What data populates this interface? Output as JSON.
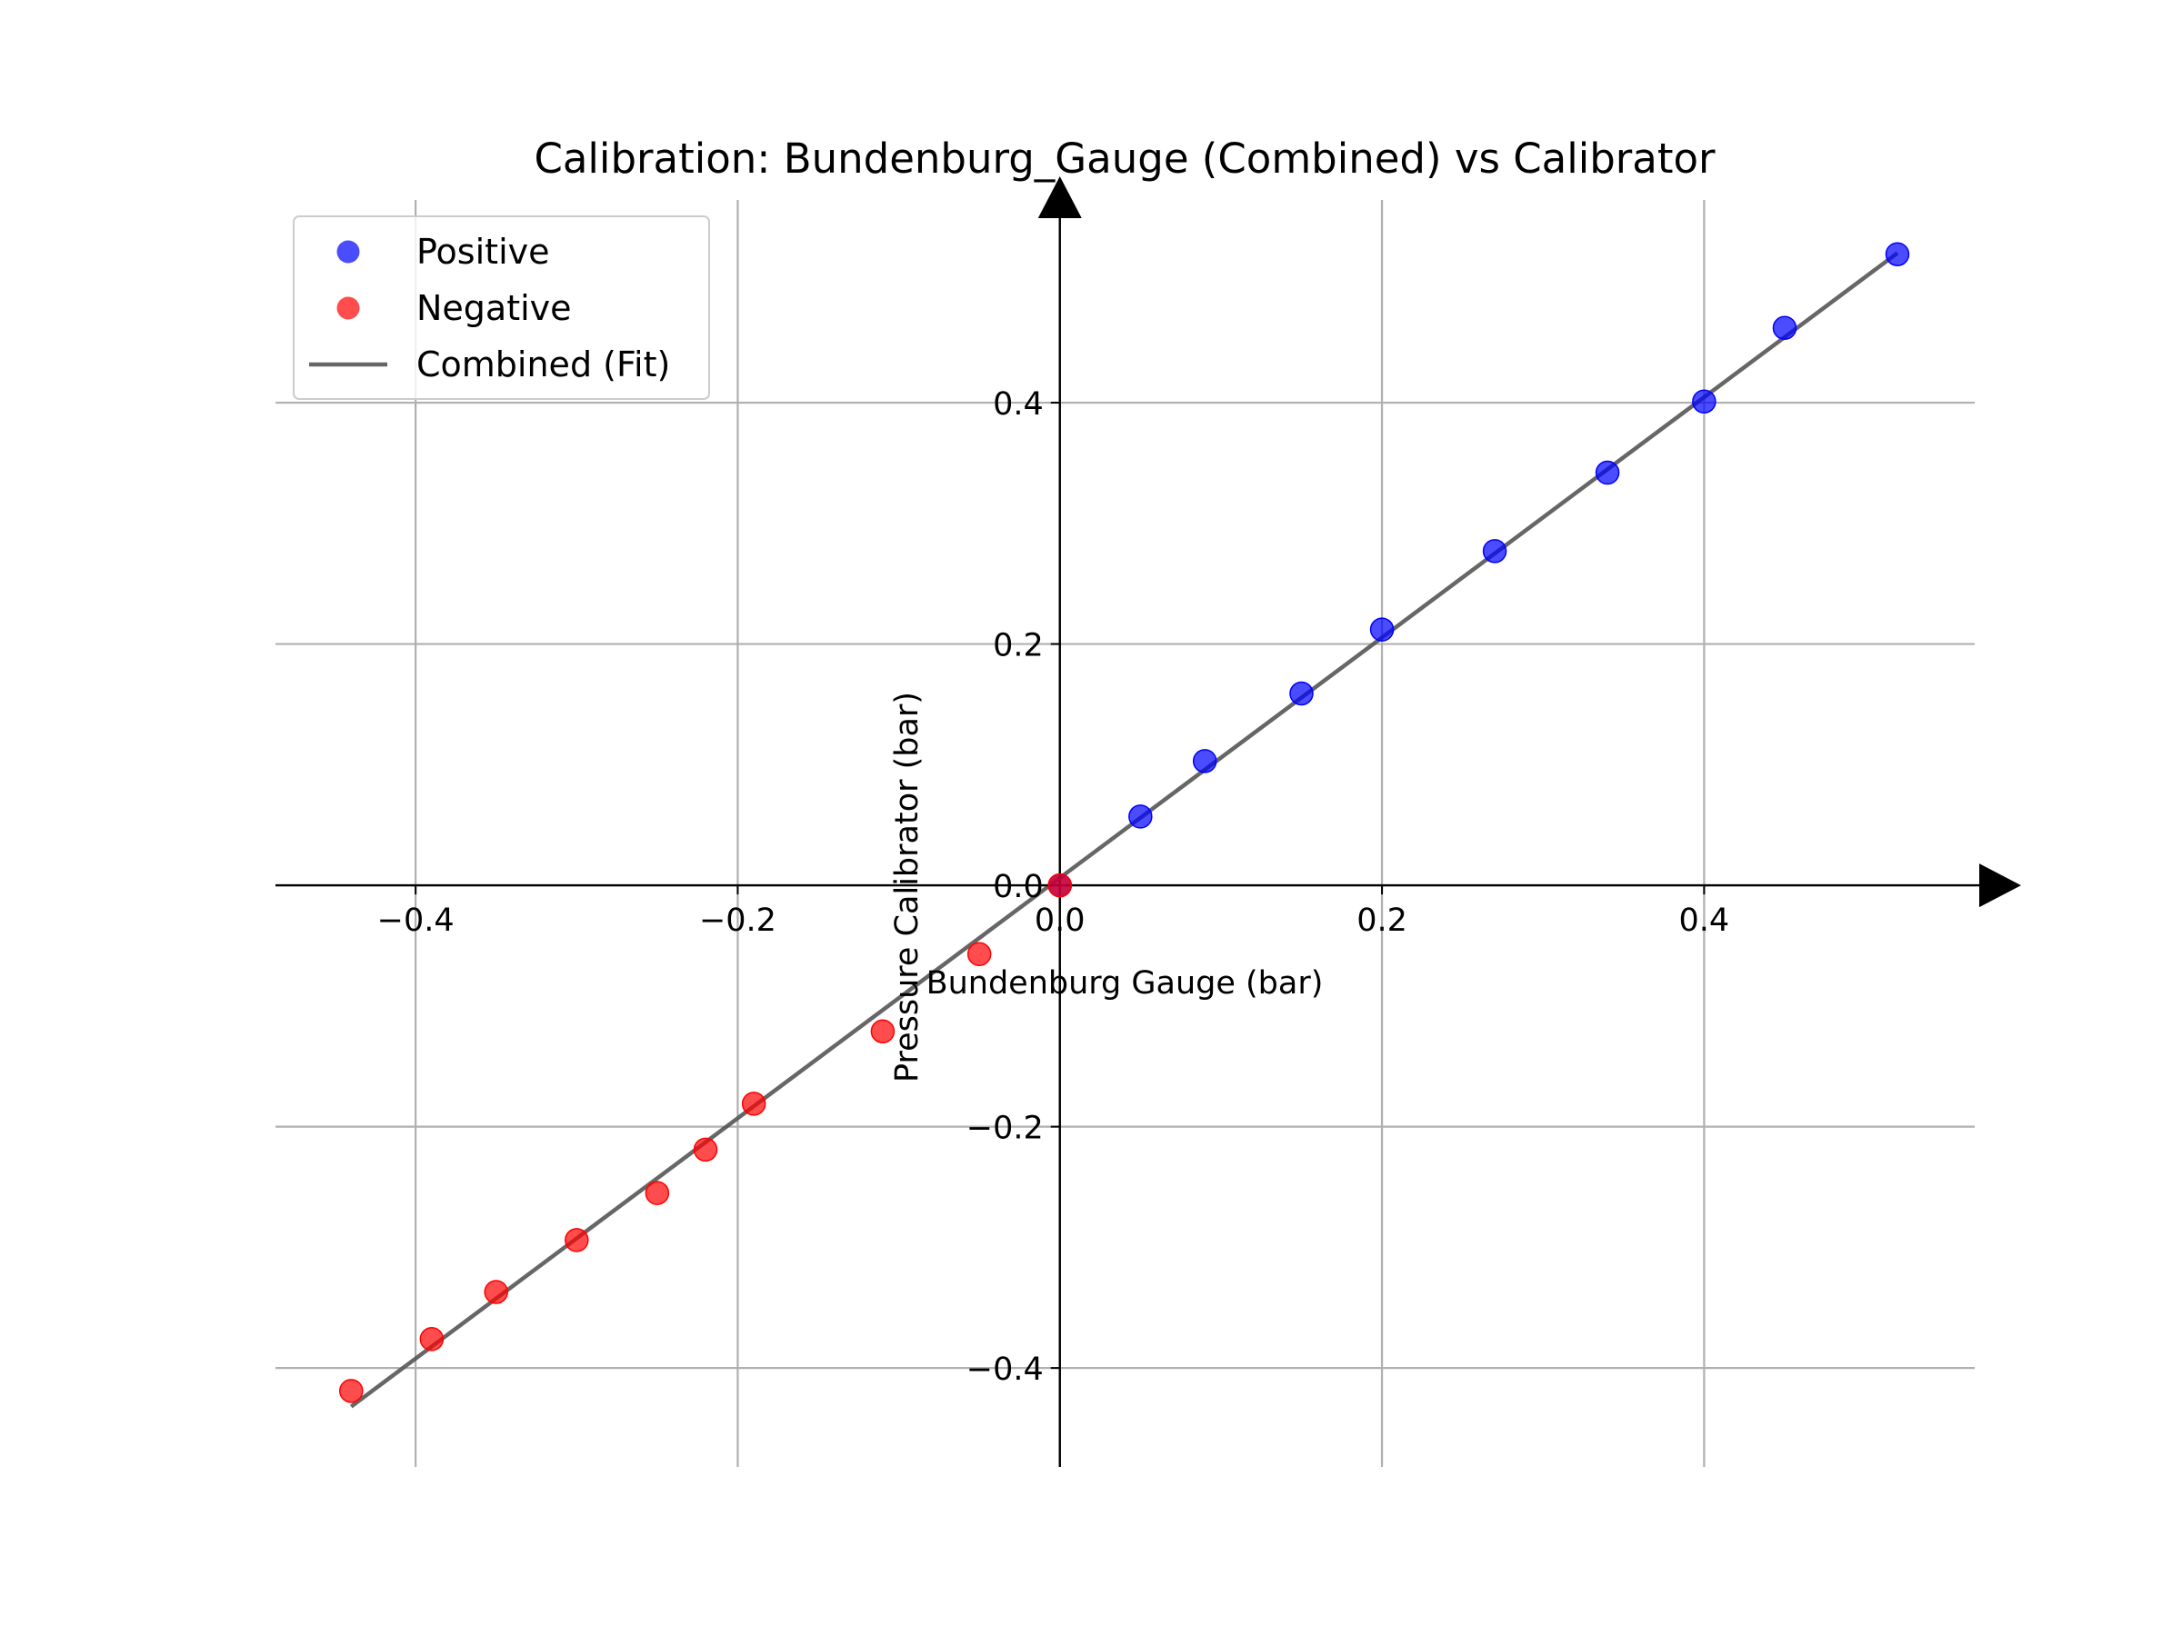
{
  "chart_data": {
    "type": "scatter",
    "title": "Calibration: Bundenburg_Gauge (Combined) vs Calibrator",
    "xlabel": "Bundenburg Gauge (bar)",
    "ylabel": "Pressure Calibrator (bar)",
    "xlim": [
      -0.487,
      0.568
    ],
    "ylim": [
      -0.482,
      0.568
    ],
    "grid": true,
    "legend_position": "top-left",
    "x_ticks": [
      {
        "value": -0.4,
        "label": "−0.4"
      },
      {
        "value": -0.2,
        "label": "−0.2"
      },
      {
        "value": 0.0,
        "label": "0.0"
      },
      {
        "value": 0.2,
        "label": "0.2"
      },
      {
        "value": 0.4,
        "label": "0.4"
      }
    ],
    "y_ticks": [
      {
        "value": -0.4,
        "label": "−0.4"
      },
      {
        "value": -0.2,
        "label": "−0.2"
      },
      {
        "value": 0.0,
        "label": "0.0"
      },
      {
        "value": 0.2,
        "label": "0.2"
      },
      {
        "value": 0.4,
        "label": "0.4"
      }
    ],
    "series": [
      {
        "name": "Positive",
        "kind": "scatter",
        "color": "#0000ff",
        "points": [
          [
            0.0,
            0.0
          ],
          [
            0.05,
            0.057
          ],
          [
            0.09,
            0.103
          ],
          [
            0.15,
            0.159
          ],
          [
            0.2,
            0.212
          ],
          [
            0.27,
            0.277
          ],
          [
            0.34,
            0.342
          ],
          [
            0.4,
            0.401
          ],
          [
            0.45,
            0.462
          ],
          [
            0.52,
            0.523
          ]
        ]
      },
      {
        "name": "Negative",
        "kind": "scatter",
        "color": "#ff0000",
        "points": [
          [
            0.0,
            0.0
          ],
          [
            -0.05,
            -0.057
          ],
          [
            -0.11,
            -0.121
          ],
          [
            -0.19,
            -0.181
          ],
          [
            -0.22,
            -0.219
          ],
          [
            -0.25,
            -0.255
          ],
          [
            -0.3,
            -0.294
          ],
          [
            -0.35,
            -0.337
          ],
          [
            -0.39,
            -0.376
          ],
          [
            -0.44,
            -0.419
          ]
        ]
      },
      {
        "name": "Combined (Fit)",
        "kind": "line",
        "color": "#555555",
        "points": [
          [
            -0.44,
            -0.432
          ],
          [
            0.52,
            0.524
          ]
        ]
      }
    ]
  }
}
